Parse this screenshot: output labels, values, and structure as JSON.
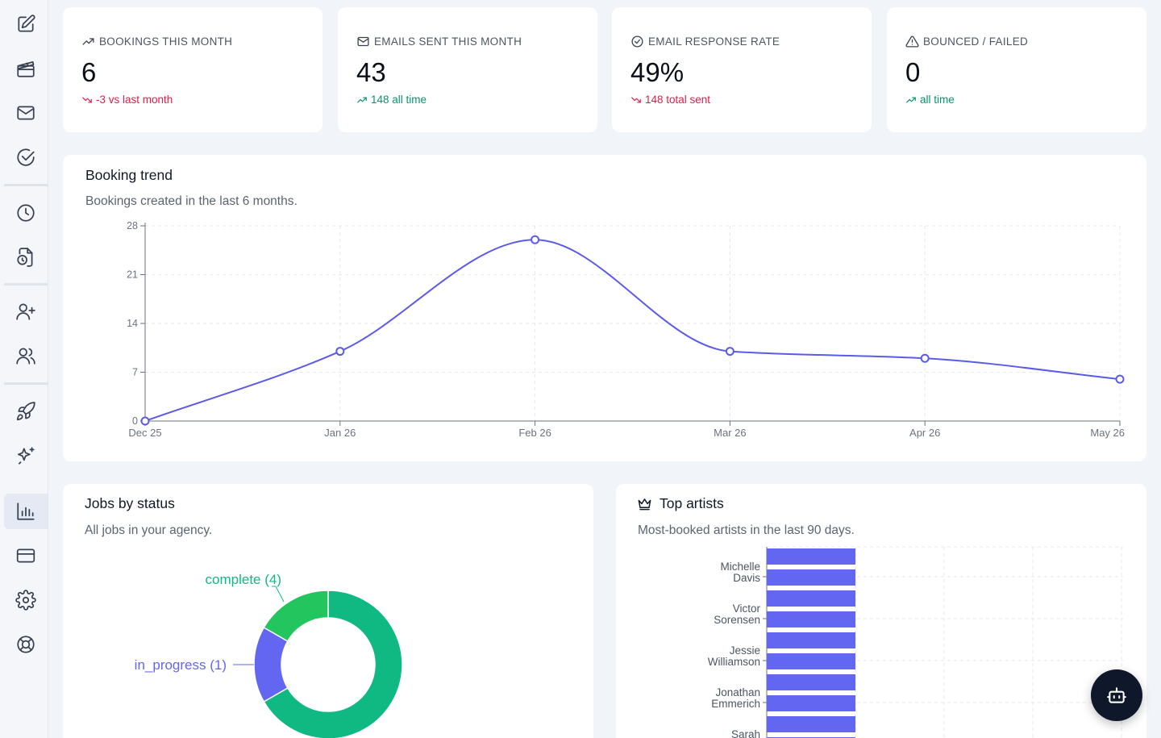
{
  "sidebar": {
    "items": [
      {
        "icon": "edit-icon"
      },
      {
        "icon": "clapperboard-icon"
      },
      {
        "icon": "mail-icon"
      },
      {
        "icon": "check-circle-icon"
      },
      {
        "icon": "clock-icon"
      },
      {
        "icon": "file-clock-icon"
      },
      {
        "icon": "user-plus-icon"
      },
      {
        "icon": "users-icon"
      },
      {
        "icon": "rocket-icon"
      },
      {
        "icon": "sparkles-icon"
      },
      {
        "icon": "bar-chart-icon",
        "active": true
      },
      {
        "icon": "credit-card-icon"
      },
      {
        "icon": "settings-icon"
      },
      {
        "icon": "life-buoy-icon"
      }
    ]
  },
  "stats": [
    {
      "label": "BOOKINGS THIS MONTH",
      "icon": "trending-up-icon",
      "value": "6",
      "sub": "-3 vs last month",
      "sub_icon": "trending-down-icon",
      "tone": "red"
    },
    {
      "label": "EMAILS SENT THIS MONTH",
      "icon": "mail-icon",
      "value": "43",
      "sub": "148 all time",
      "sub_icon": "trending-up-icon",
      "tone": "green"
    },
    {
      "label": "EMAIL RESPONSE RATE",
      "icon": "check-circle-icon",
      "value": "49%",
      "sub": "148 total sent",
      "sub_icon": "trending-down-icon",
      "tone": "red"
    },
    {
      "label": "BOUNCED / FAILED",
      "icon": "alert-triangle-icon",
      "value": "0",
      "sub": "all time",
      "sub_icon": "trending-up-icon",
      "tone": "green"
    }
  ],
  "booking_trend": {
    "title": "Booking trend",
    "description": "Bookings created in the last 6 months."
  },
  "jobs_by_status": {
    "title": "Jobs by status",
    "description": "All jobs in your agency."
  },
  "top_artists": {
    "title": "Top artists",
    "description": "Most-booked artists in the last 90 days."
  },
  "chart_data": [
    {
      "type": "line",
      "x": [
        "Dec 25",
        "Jan 26",
        "Feb 26",
        "Mar 26",
        "Apr 26",
        "May 26"
      ],
      "values": [
        0,
        10,
        26,
        10,
        9,
        6
      ],
      "yticks": [
        0,
        7,
        14,
        21,
        28
      ],
      "ylim": [
        0,
        28
      ],
      "grid": true,
      "color": "#5b5bea"
    },
    {
      "type": "pie",
      "labels": [
        "complete (4)",
        "in_progress (1)",
        ""
      ],
      "values": [
        4,
        1,
        1
      ],
      "colors": [
        "#10b981",
        "#6366f1",
        "#22c55e"
      ]
    },
    {
      "type": "bar",
      "orientation": "horizontal",
      "categories": [
        "Michelle Davis",
        "Victor Sorensen",
        "Jessie Williamson",
        "Jonathan Emmerich",
        "Sarah"
      ],
      "bar_count": 10,
      "color": "#6366f1",
      "grid": true
    }
  ],
  "colors": {
    "accent": "#5b5bea",
    "red": "#e11d48",
    "green": "#059669",
    "donut_green": "#10b981"
  }
}
